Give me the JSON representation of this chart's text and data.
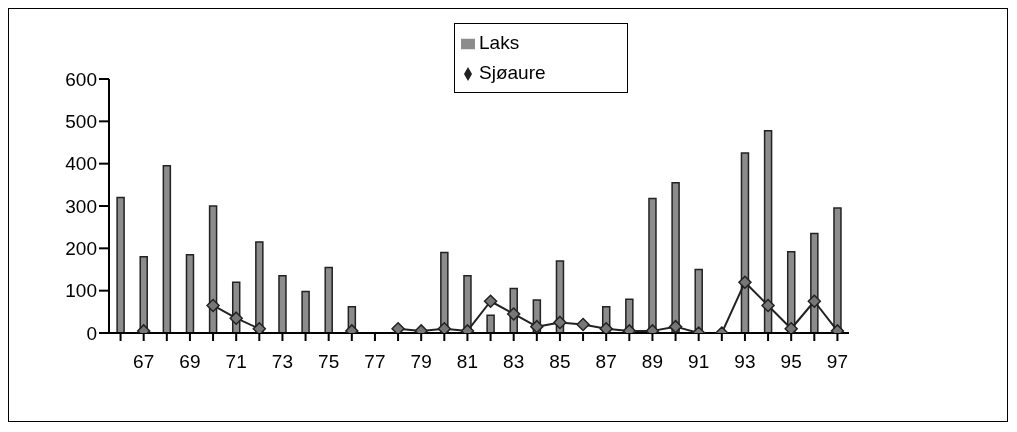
{
  "chart_data": {
    "type": "bar",
    "categories": [
      null,
      "67",
      null,
      "69",
      null,
      "71",
      null,
      "73",
      null,
      "75",
      null,
      "77",
      null,
      "79",
      null,
      "81",
      null,
      "83",
      null,
      "85",
      null,
      "87",
      null,
      "89",
      null,
      "91",
      null,
      "93",
      null,
      "95",
      null,
      "97"
    ],
    "series": [
      {
        "name": "Laks",
        "color": "#8c8c8c",
        "values": [
          320,
          180,
          395,
          185,
          300,
          120,
          215,
          135,
          98,
          155,
          62,
          null,
          null,
          null,
          190,
          135,
          42,
          105,
          78,
          170,
          null,
          62,
          80,
          318,
          355,
          150,
          null,
          425,
          478,
          192,
          235,
          295
        ]
      },
      {
        "name": "Sjøaure",
        "type": "line",
        "color": "#222222",
        "values": [
          null,
          5,
          null,
          null,
          65,
          35,
          10,
          null,
          null,
          null,
          5,
          null,
          10,
          5,
          10,
          5,
          75,
          45,
          15,
          25,
          20,
          10,
          5,
          5,
          15,
          0,
          0,
          120,
          65,
          10,
          75,
          5
        ]
      }
    ],
    "ylim": [
      0,
      600
    ],
    "yticks": [
      0,
      100,
      200,
      300,
      400,
      500,
      600
    ],
    "grid": false,
    "legend": "top",
    "marker": "diamond",
    "line_style": "solid"
  }
}
